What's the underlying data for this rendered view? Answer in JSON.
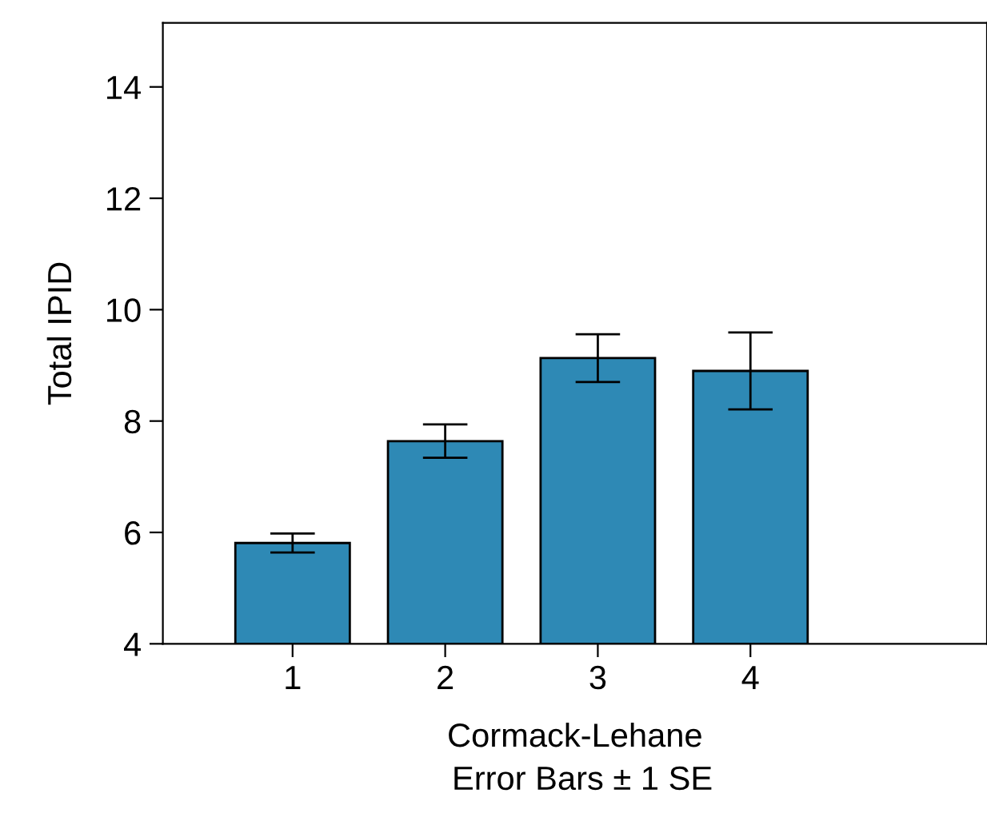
{
  "chart_data": {
    "type": "bar",
    "xlabel": "Cormack-Lehane",
    "ylabel": "Total IPID",
    "categories": [
      "1",
      "2",
      "3",
      "4"
    ],
    "values": [
      5.81,
      7.64,
      9.13,
      8.9
    ],
    "errors": [
      0.17,
      0.3,
      0.43,
      0.69
    ],
    "color": "#2e89b5",
    "ylim": [
      4,
      15.15
    ],
    "yticks": [
      4,
      6,
      8,
      10,
      12,
      14
    ],
    "grid": false,
    "annotations": [
      "Error Bars ± 1 SE"
    ]
  }
}
